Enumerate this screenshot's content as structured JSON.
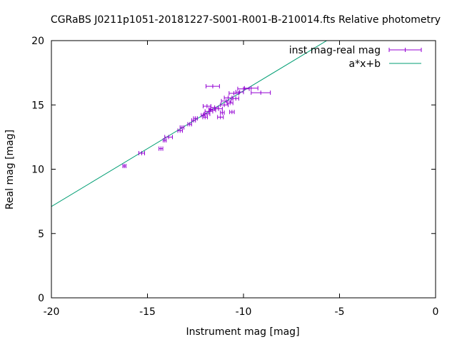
{
  "colors": {
    "data": "#9400d3",
    "fit": "#009e73",
    "axis": "#000000",
    "background": "#ffffff"
  },
  "chart_data": {
    "type": "scatter",
    "title": "CGRaBS J0211p1051-20181227-S001-R001-B-210014.fts Relative photometry",
    "xlabel": "Instrument mag [mag]",
    "ylabel": "Real mag [mag]",
    "xlim": [
      -20,
      0
    ],
    "ylim": [
      0,
      20
    ],
    "xticks": [
      -20,
      -15,
      -10,
      -5,
      0
    ],
    "yticks": [
      0,
      5,
      10,
      15,
      20
    ],
    "xtick_labels": [
      "-20",
      "-15",
      "-10",
      "-5",
      "0"
    ],
    "ytick_labels": [
      "0",
      "5",
      "10",
      "15",
      "20"
    ],
    "grid": false,
    "legend_position": "top-right",
    "series": [
      {
        "name": "inst mag-real mag",
        "style": "points with x error bars",
        "points": [
          {
            "x": -16.2,
            "y": 10.25,
            "xerr": 0.08
          },
          {
            "x": -15.3,
            "y": 11.25,
            "xerr": 0.15
          },
          {
            "x": -14.3,
            "y": 11.6,
            "xerr": 0.1
          },
          {
            "x": -14.1,
            "y": 12.25,
            "xerr": 0.08
          },
          {
            "x": -13.9,
            "y": 12.5,
            "xerr": 0.2
          },
          {
            "x": -13.3,
            "y": 13.0,
            "xerr": 0.12
          },
          {
            "x": -13.2,
            "y": 13.25,
            "xerr": 0.1
          },
          {
            "x": -12.8,
            "y": 13.5,
            "xerr": 0.1
          },
          {
            "x": -12.6,
            "y": 13.8,
            "xerr": 0.1
          },
          {
            "x": -12.5,
            "y": 13.95,
            "xerr": 0.1
          },
          {
            "x": -12.0,
            "y": 14.05,
            "xerr": 0.12
          },
          {
            "x": -11.9,
            "y": 14.3,
            "xerr": 0.15
          },
          {
            "x": -11.8,
            "y": 14.5,
            "xerr": 0.2
          },
          {
            "x": -11.9,
            "y": 14.9,
            "xerr": 0.2
          },
          {
            "x": -11.6,
            "y": 14.6,
            "xerr": 0.15
          },
          {
            "x": -11.5,
            "y": 14.8,
            "xerr": 0.2
          },
          {
            "x": -11.3,
            "y": 14.7,
            "xerr": 0.2
          },
          {
            "x": -11.2,
            "y": 14.05,
            "xerr": 0.15
          },
          {
            "x": -11.1,
            "y": 14.4,
            "xerr": 0.1
          },
          {
            "x": -11.0,
            "y": 15.0,
            "xerr": 0.2
          },
          {
            "x": -10.9,
            "y": 15.3,
            "xerr": 0.25
          },
          {
            "x": -10.8,
            "y": 15.55,
            "xerr": 0.2
          },
          {
            "x": -10.7,
            "y": 15.15,
            "xerr": 0.15
          },
          {
            "x": -10.6,
            "y": 14.45,
            "xerr": 0.12
          },
          {
            "x": -10.5,
            "y": 15.9,
            "xerr": 0.25
          },
          {
            "x": -10.4,
            "y": 15.5,
            "xerr": 0.15
          },
          {
            "x": -10.2,
            "y": 16.0,
            "xerr": 0.2
          },
          {
            "x": -10.0,
            "y": 16.25,
            "xerr": 0.3
          },
          {
            "x": -9.6,
            "y": 16.3,
            "xerr": 0.35
          },
          {
            "x": -9.1,
            "y": 15.95,
            "xerr": 0.5
          },
          {
            "x": -11.6,
            "y": 16.45,
            "xerr": 0.35
          },
          {
            "x": -12.1,
            "y": 14.2,
            "xerr": 0.1
          },
          {
            "x": -11.7,
            "y": 14.65,
            "xerr": 0.1
          }
        ]
      },
      {
        "name": "a*x+b",
        "style": "line",
        "slope": 0.9,
        "intercept": 25.1
      }
    ]
  }
}
